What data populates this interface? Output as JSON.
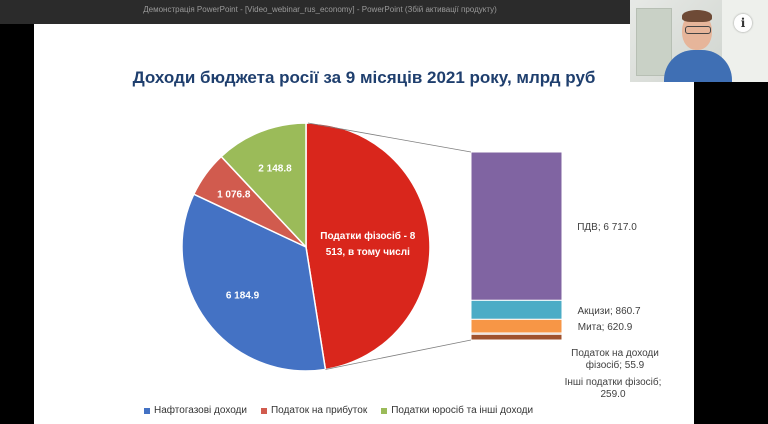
{
  "window": {
    "title": "Демонстрація PowerPoint - [Video_webinar_rus_economy] - PowerPoint (Збій активації продукту)"
  },
  "info_icon": "i",
  "colors": {
    "oil_gas": "#4472c4",
    "profit_tax": "#d15b4e",
    "corporate": "#9bbb59",
    "personal": "#d9261c",
    "vat": "#8064a2",
    "excise": "#4bacc6",
    "duties": "#f79646",
    "personal_income": "#7f3f1f",
    "other_personal": "#a0522d"
  },
  "chart_data": {
    "type": "pie",
    "title": "Доходи бюджета росії за 9 місяців 2021 року, млрд руб",
    "slices": [
      {
        "key": "personal",
        "label": "Податки фізосіб - 8 513, в тому числі",
        "value": 8513,
        "label_lines": [
          "Податки фізосіб - 8",
          "513, в тому числі"
        ]
      },
      {
        "key": "oil_gas",
        "label": "6 184.9",
        "value": 6184.9
      },
      {
        "key": "profit_tax",
        "label": "1 076.8",
        "value": 1076.8
      },
      {
        "key": "corporate",
        "label": "2 148.8",
        "value": 2148.8
      }
    ],
    "breakdown": [
      {
        "key": "vat",
        "label": "ПДВ; 6 717.0",
        "value": 6717.0,
        "label_lines": [
          "ПДВ; 6 717.0"
        ]
      },
      {
        "key": "excise",
        "label": "Акцизи; 860.7",
        "value": 860.7,
        "label_lines": [
          "Акцизи; 860.7"
        ]
      },
      {
        "key": "duties",
        "label": "Мита; 620.9",
        "value": 620.9,
        "label_lines": [
          "Мита; 620.9"
        ]
      },
      {
        "key": "personal_income",
        "label": "Податок на доходи фізосіб; 55.9",
        "value": 55.9,
        "label_lines": [
          "Податок на доходи",
          "фізосіб; 55.9"
        ]
      },
      {
        "key": "other_personal",
        "label": "Інші податки фізосіб; 259.0",
        "value": 259.0,
        "label_lines": [
          "Інші податки фізосіб;",
          "259.0"
        ]
      }
    ],
    "legend": [
      {
        "key": "oil_gas",
        "label": "Нафтогазові доходи"
      },
      {
        "key": "profit_tax",
        "label": "Податок на прибуток"
      },
      {
        "key": "corporate",
        "label": "Податки юросіб та інші доходи"
      }
    ]
  }
}
